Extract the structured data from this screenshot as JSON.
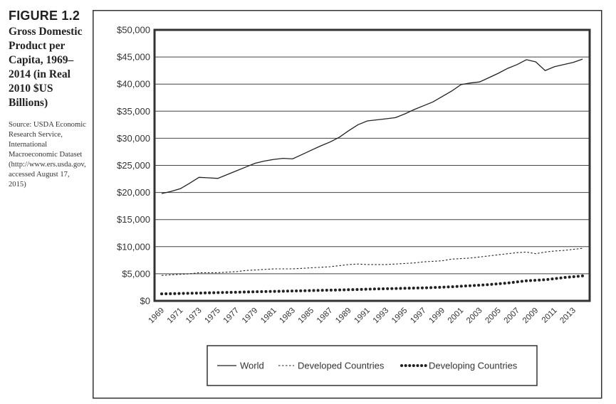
{
  "caption": {
    "figure_label": "FIGURE 1.2",
    "title": "Gross Domestic Product per Capita, 1969–2014 (in Real 2010 $US Billions)",
    "source": "Source: USDA Economic Research Service, International Macroeconomic Dataset (http://www.ers.usda.gov, accessed August 17, 2015)"
  },
  "chart_data": {
    "type": "line",
    "title": "",
    "xlabel": "",
    "ylabel": "",
    "ylim": [
      0,
      50000
    ],
    "yticks": [
      0,
      5000,
      10000,
      15000,
      20000,
      25000,
      30000,
      35000,
      40000,
      45000,
      50000
    ],
    "ytick_labels": [
      "$0",
      "$5,000",
      "$10,000",
      "$15,000",
      "$20,000",
      "$25,000",
      "$30,000",
      "$35,000",
      "$40,000",
      "$45,000",
      "$50,000"
    ],
    "x": [
      1969,
      1970,
      1971,
      1972,
      1973,
      1974,
      1975,
      1976,
      1977,
      1978,
      1979,
      1980,
      1981,
      1982,
      1983,
      1984,
      1985,
      1986,
      1987,
      1988,
      1989,
      1990,
      1991,
      1992,
      1993,
      1994,
      1995,
      1996,
      1997,
      1998,
      1999,
      2000,
      2001,
      2002,
      2003,
      2004,
      2005,
      2006,
      2007,
      2008,
      2009,
      2010,
      2011,
      2012,
      2013,
      2014
    ],
    "xtick_labels": [
      "1969",
      "1971",
      "1973",
      "1975",
      "1977",
      "1979",
      "1981",
      "1983",
      "1985",
      "1987",
      "1989",
      "1991",
      "1993",
      "1995",
      "1997",
      "1999",
      "2001",
      "2003",
      "2005",
      "2007",
      "2009",
      "2011",
      "2013"
    ],
    "grid": "horizontal",
    "legend": "bottom",
    "series": [
      {
        "name": "World",
        "style": "solid",
        "values": [
          19800,
          20200,
          20700,
          21700,
          22800,
          22700,
          22600,
          23300,
          24000,
          24700,
          25400,
          25800,
          26100,
          26300,
          26200,
          27000,
          27800,
          28600,
          29300,
          30200,
          31400,
          32500,
          33200,
          33400,
          33600,
          33800,
          34500,
          35300,
          36000,
          36700,
          37700,
          38700,
          39900,
          40200,
          40400,
          41200,
          42000,
          42900,
          43600,
          44500,
          44100,
          42500,
          43200,
          43600,
          44000,
          44600
        ]
      },
      {
        "name": "Developed Countries",
        "style": "dashed",
        "values": [
          4700,
          4800,
          4900,
          5000,
          5200,
          5200,
          5200,
          5300,
          5400,
          5600,
          5700,
          5800,
          5900,
          5900,
          5900,
          6000,
          6100,
          6200,
          6300,
          6500,
          6700,
          6800,
          6700,
          6700,
          6700,
          6800,
          6900,
          7000,
          7200,
          7300,
          7400,
          7700,
          7800,
          7900,
          8100,
          8300,
          8500,
          8700,
          8900,
          9000,
          8700,
          9000,
          9200,
          9300,
          9500,
          9700
        ]
      },
      {
        "name": "Developing Countries",
        "style": "dotted",
        "values": [
          1300,
          1330,
          1370,
          1410,
          1450,
          1480,
          1520,
          1560,
          1600,
          1640,
          1680,
          1720,
          1750,
          1780,
          1820,
          1860,
          1900,
          1940,
          1980,
          2020,
          2060,
          2100,
          2150,
          2200,
          2240,
          2280,
          2320,
          2360,
          2400,
          2450,
          2520,
          2600,
          2700,
          2800,
          2900,
          3000,
          3150,
          3300,
          3500,
          3700,
          3800,
          3900,
          4100,
          4300,
          4450,
          4600
        ]
      }
    ]
  }
}
